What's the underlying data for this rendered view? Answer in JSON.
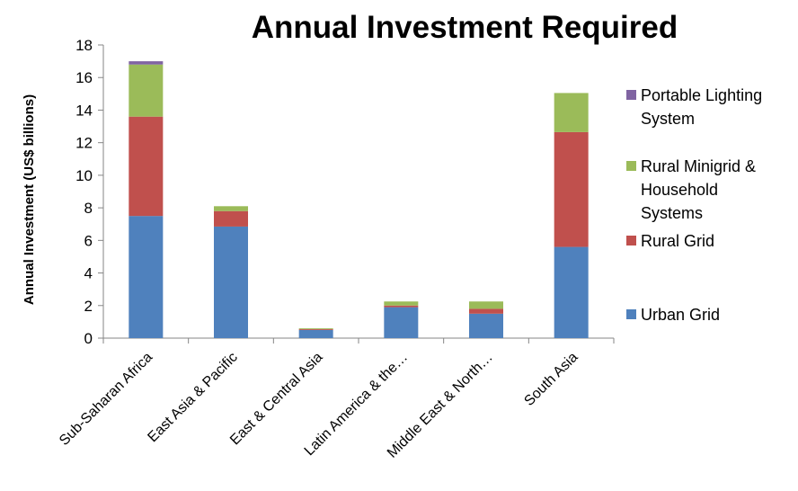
{
  "chart_data": {
    "type": "bar",
    "stacked": true,
    "title": "Annual Investment Required",
    "ylabel": "Annual Investment (US$ billions)",
    "xlabel": "",
    "ylim": [
      0,
      18
    ],
    "yticks": [
      0,
      2,
      4,
      6,
      8,
      10,
      12,
      14,
      16,
      18
    ],
    "grid": false,
    "legend_position": "right",
    "categories": [
      "Sub-Saharan Africa",
      "East Asia & Pacific",
      "East & Central Asia",
      "Latin America & the…",
      "Middle East & North…",
      "South Asia"
    ],
    "series": [
      {
        "name": "Urban Grid",
        "color": "#4F81BD",
        "values": [
          7.5,
          6.85,
          0.5,
          1.9,
          1.5,
          5.6
        ]
      },
      {
        "name": "Rural Grid",
        "color": "#C0504D",
        "values": [
          6.1,
          0.95,
          0.05,
          0.1,
          0.3,
          7.05
        ]
      },
      {
        "name": "Rural Minigrid & Household Systems",
        "color": "#9BBB59",
        "values": [
          3.2,
          0.3,
          0.05,
          0.25,
          0.45,
          2.4
        ]
      },
      {
        "name": "Portable Lighting System",
        "color": "#8064A2",
        "values": [
          0.2,
          0,
          0,
          0,
          0,
          0
        ]
      }
    ],
    "legend": [
      {
        "lines": [
          "Portable Lighting",
          "System"
        ],
        "color": "#8064A2"
      },
      {
        "lines": [
          "Rural Minigrid &",
          "Household",
          "Systems"
        ],
        "color": "#9BBB59"
      },
      {
        "lines": [
          "Rural Grid"
        ],
        "color": "#C0504D"
      },
      {
        "lines": [
          "Urban Grid"
        ],
        "color": "#4F81BD"
      }
    ]
  }
}
